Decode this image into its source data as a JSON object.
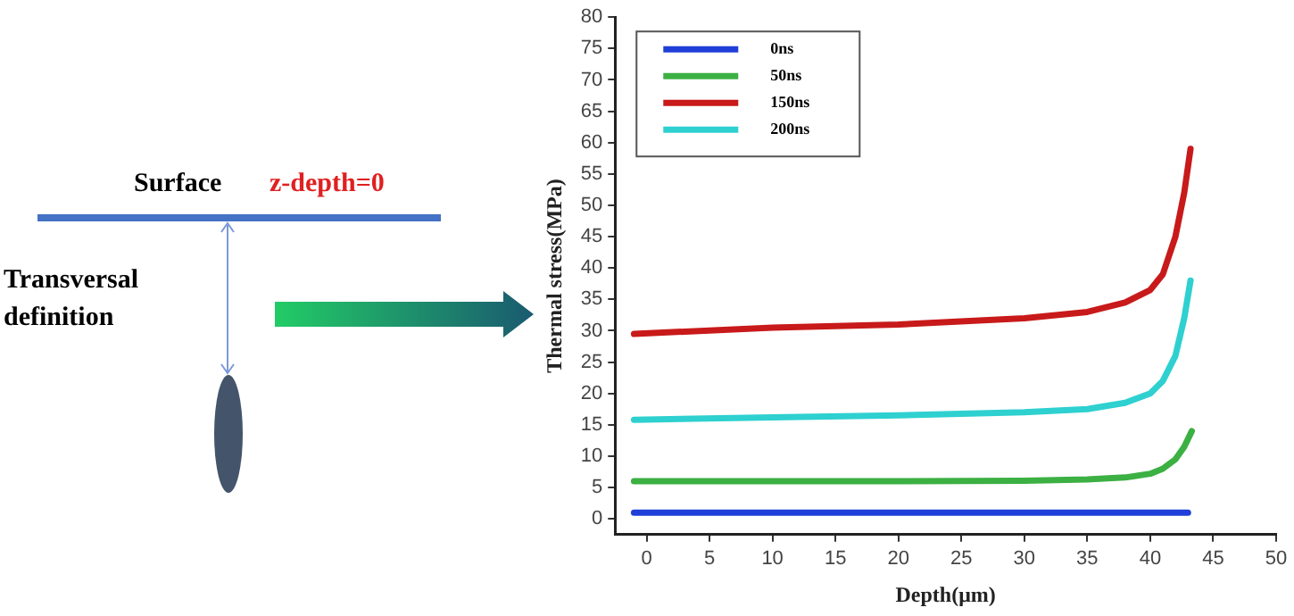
{
  "chart_data": {
    "type": "line",
    "xlabel": "Depth(μm)",
    "ylabel": "Thermal stress(MPa)",
    "annotations": [
      "Surface",
      "z-depth=0",
      "Transversal definition"
    ],
    "xlim": [
      -2.5,
      50
    ],
    "ylim": [
      -2.5,
      80
    ],
    "xticks": [
      0,
      5,
      10,
      15,
      20,
      25,
      30,
      35,
      40,
      45,
      50
    ],
    "yticks": [
      0,
      5,
      10,
      15,
      20,
      25,
      30,
      35,
      40,
      45,
      50,
      55,
      60,
      65,
      70,
      75,
      80
    ],
    "legend": "top left",
    "marker": "none",
    "line_style": "solid",
    "series": [
      {
        "name": "0ns",
        "color": "#1f3fd8",
        "x": [
          -1,
          10,
          20,
          30,
          43
        ],
        "values": [
          1,
          1,
          1,
          1,
          1
        ]
      },
      {
        "name": "50ns",
        "color": "#3cb043",
        "x": [
          -1,
          10,
          20,
          30,
          35,
          38,
          40,
          41,
          42,
          42.7,
          43.3
        ],
        "values": [
          6,
          6,
          6,
          6.1,
          6.3,
          6.6,
          7.2,
          8,
          9.5,
          11.5,
          14
        ]
      },
      {
        "name": "150ns",
        "color": "#c81a1a",
        "x": [
          -1,
          10,
          20,
          30,
          35,
          38,
          40,
          41,
          42,
          42.7,
          43.2
        ],
        "values": [
          29.5,
          30.5,
          31,
          32,
          33,
          34.5,
          36.5,
          39,
          45,
          52,
          59
        ]
      },
      {
        "name": "200ns",
        "color": "#2ed0d0",
        "x": [
          -1,
          10,
          20,
          30,
          35,
          38,
          40,
          41,
          42,
          42.7,
          43.2
        ],
        "values": [
          15.8,
          16.2,
          16.5,
          17,
          17.5,
          18.5,
          20,
          22,
          26,
          32,
          38
        ]
      }
    ]
  }
}
